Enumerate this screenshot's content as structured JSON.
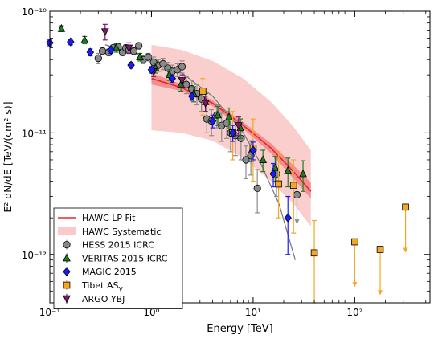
{
  "chart_data": {
    "type": "scatter",
    "xlabel": "Energy [TeV]",
    "ylabel": "E² dN/dE  [TeV/(cm² s)]",
    "x_scale": "log",
    "y_scale": "log",
    "xlim": [
      0.1,
      550
    ],
    "ylim": [
      4e-13,
      1e-10
    ],
    "x_ticks": [
      {
        "value": 0.1,
        "label": "10⁻¹"
      },
      {
        "value": 1,
        "label": "10⁰"
      },
      {
        "value": 10,
        "label": "10¹"
      },
      {
        "value": 100,
        "label": "10²"
      }
    ],
    "y_ticks": [
      {
        "value": 1e-12,
        "label": "10⁻¹²"
      },
      {
        "value": 1e-11,
        "label": "10⁻¹¹"
      },
      {
        "value": 1e-10,
        "label": "10⁻¹⁰"
      }
    ],
    "legend_position": "lower-left",
    "legend": [
      {
        "key": "hawc_fit",
        "label": "HAWC LP Fit",
        "kind": "line",
        "color": "#e8262b"
      },
      {
        "key": "hawc_sys",
        "label": "HAWC Systematic",
        "kind": "band",
        "color": "#fbc9c9"
      },
      {
        "key": "hess",
        "label": "HESS 2015 ICRC",
        "kind": "circle",
        "color": "#888888"
      },
      {
        "key": "veritas",
        "label": "VERITAS 2015 ICRC",
        "kind": "triangle",
        "color": "#1f7a1f"
      },
      {
        "key": "magic",
        "label": "MAGIC 2015",
        "kind": "diamond",
        "color": "#1a1aff"
      },
      {
        "key": "tibet",
        "label": "Tibet AS",
        "sub": "γ",
        "kind": "square",
        "color": "#f5a623"
      },
      {
        "key": "argo",
        "label": "ARGO YBJ",
        "kind": "down-triangle",
        "color": "#7b1a6b"
      }
    ],
    "hawc_fit": [
      [
        1.0,
        2.8e-11
      ],
      [
        2,
        2.35e-11
      ],
      [
        4,
        1.75e-11
      ],
      [
        8,
        1.15e-11
      ],
      [
        15,
        7.5e-12
      ],
      [
        25,
        4.8e-12
      ],
      [
        37,
        3.3e-12
      ]
    ],
    "hawc_fit_err_low": [
      [
        1.0,
        2.5e-11
      ],
      [
        2,
        2.2e-11
      ],
      [
        4,
        1.65e-11
      ],
      [
        8,
        1.08e-11
      ],
      [
        15,
        6.8e-12
      ],
      [
        25,
        4.2e-12
      ],
      [
        37,
        2.9e-12
      ]
    ],
    "hawc_fit_err_high": [
      [
        1.0,
        3.1e-11
      ],
      [
        2,
        2.5e-11
      ],
      [
        4,
        1.85e-11
      ],
      [
        8,
        1.22e-11
      ],
      [
        15,
        8.2e-12
      ],
      [
        25,
        5.4e-12
      ],
      [
        37,
        3.9e-12
      ]
    ],
    "hawc_sys_low": [
      [
        1.0,
        1.05e-11
      ],
      [
        2,
        1e-11
      ],
      [
        4,
        8.6e-12
      ],
      [
        8,
        6.2e-12
      ],
      [
        15,
        4e-12
      ],
      [
        25,
        2.6e-12
      ],
      [
        37,
        1.7e-12
      ]
    ],
    "hawc_sys_high": [
      [
        1.0,
        5.3e-11
      ],
      [
        2,
        4.8e-11
      ],
      [
        4,
        3.9e-11
      ],
      [
        8,
        2.8e-11
      ],
      [
        15,
        1.8e-11
      ],
      [
        25,
        1.12e-11
      ],
      [
        37,
        7.2e-12
      ]
    ],
    "hess_fit_curve": [
      [
        0.35,
        5.3e-11
      ],
      [
        1,
        4.1e-11
      ],
      [
        2,
        3.1e-11
      ],
      [
        4,
        2e-11
      ],
      [
        8,
        1e-11
      ],
      [
        12,
        5.5e-12
      ],
      [
        18,
        2.6e-12
      ],
      [
        26,
        9e-13
      ]
    ],
    "series": {
      "hess": [
        {
          "x": 0.3,
          "y": 4.1e-11,
          "lo": 3.7e-11,
          "hi": 4.5e-11
        },
        {
          "x": 0.33,
          "y": 4.7e-11,
          "lo": 4.4e-11,
          "hi": 5e-11
        },
        {
          "x": 0.38,
          "y": 4.6e-11,
          "lo": 4.3e-11,
          "hi": 4.9e-11
        },
        {
          "x": 0.42,
          "y": 5e-11,
          "lo": 4.7e-11,
          "hi": 5.3e-11
        },
        {
          "x": 0.47,
          "y": 5.1e-11,
          "lo": 4.8e-11,
          "hi": 5.4e-11
        },
        {
          "x": 0.52,
          "y": 4.6e-11,
          "lo": 4.3e-11,
          "hi": 4.9e-11
        },
        {
          "x": 0.56,
          "y": 5e-11,
          "lo": 4.7e-11,
          "hi": 5.3e-11
        },
        {
          "x": 0.6,
          "y": 4.8e-11,
          "lo": 4.5e-11,
          "hi": 5.1e-11
        },
        {
          "x": 0.67,
          "y": 4.7e-11,
          "lo": 4.4e-11,
          "hi": 5e-11
        },
        {
          "x": 0.75,
          "y": 5.2e-11,
          "lo": 4.9e-11,
          "hi": 5.5e-11
        },
        {
          "x": 0.83,
          "y": 4e-11,
          "lo": 3.7e-11,
          "hi": 4.3e-11
        },
        {
          "x": 0.93,
          "y": 4.2e-11,
          "lo": 3.9e-11,
          "hi": 4.5e-11
        },
        {
          "x": 1.05,
          "y": 3.8e-11,
          "lo": 3.4e-11,
          "hi": 4.2e-11
        },
        {
          "x": 1.17,
          "y": 3.6e-11,
          "lo": 3.2e-11,
          "hi": 4e-11
        },
        {
          "x": 1.3,
          "y": 3.7e-11,
          "lo": 3.3e-11,
          "hi": 4.1e-11
        },
        {
          "x": 1.45,
          "y": 3.4e-11,
          "lo": 3e-11,
          "hi": 3.8e-11
        },
        {
          "x": 1.6,
          "y": 3.2e-11,
          "lo": 2.8e-11,
          "hi": 3.6e-11
        },
        {
          "x": 1.8,
          "y": 3.3e-11,
          "lo": 2.9e-11,
          "hi": 3.7e-11
        },
        {
          "x": 2.0,
          "y": 3.5e-11,
          "lo": 3.1e-11,
          "hi": 3.9e-11
        },
        {
          "x": 2.2,
          "y": 2.5e-11,
          "lo": 2.1e-11,
          "hi": 2.9e-11
        },
        {
          "x": 2.5,
          "y": 2.3e-11,
          "lo": 1.9e-11,
          "hi": 2.7e-11
        },
        {
          "x": 2.8,
          "y": 2.1e-11,
          "lo": 1.7e-11,
          "hi": 2.5e-11
        },
        {
          "x": 3.1,
          "y": 1.9e-11,
          "lo": 1.5e-11,
          "hi": 2.3e-11
        },
        {
          "x": 3.5,
          "y": 1.3e-11,
          "lo": 1e-11,
          "hi": 1.6e-11
        },
        {
          "x": 3.9,
          "y": 1.25e-11,
          "lo": 9.5e-12,
          "hi": 1.55e-11
        },
        {
          "x": 4.4,
          "y": 1.4e-11,
          "lo": 1.1e-11,
          "hi": 1.7e-11
        },
        {
          "x": 4.9,
          "y": 1.15e-11,
          "lo": 8.5e-12,
          "hi": 1.45e-11
        },
        {
          "x": 5.5,
          "y": 1.2e-11,
          "lo": 9e-12,
          "hi": 1.5e-11
        },
        {
          "x": 6.0,
          "y": 1e-11,
          "lo": 7e-12,
          "hi": 1.3e-11
        },
        {
          "x": 6.7,
          "y": 9.5e-12,
          "lo": 6.5e-12,
          "hi": 1.25e-11
        },
        {
          "x": 7.6,
          "y": 9e-12,
          "lo": 6e-12,
          "hi": 1.2e-11
        },
        {
          "x": 8.5,
          "y": 6e-12,
          "lo": 4.2e-12,
          "hi": 7.8e-12
        },
        {
          "x": 9.5,
          "y": 6.5e-12,
          "lo": 4.5e-12,
          "hi": 8.5e-12
        },
        {
          "x": 11,
          "y": 3.5e-12,
          "lo": 2.2e-12,
          "hi": 5e-12
        },
        {
          "x": 17,
          "y": 4.6e-12,
          "lo": 3e-12,
          "hi": 6.2e-12
        },
        {
          "x": 27,
          "y": 3.1e-12,
          "ul": true,
          "arrow_to": 1.8e-12
        }
      ],
      "veritas": [
        {
          "x": 0.13,
          "y": 7.2e-11,
          "lo": 6.8e-11,
          "hi": 7.6e-11
        },
        {
          "x": 0.22,
          "y": 5.8e-11,
          "lo": 5.4e-11,
          "hi": 6.2e-11
        },
        {
          "x": 0.45,
          "y": 5e-11,
          "lo": 4.6e-11,
          "hi": 5.4e-11
        },
        {
          "x": 0.77,
          "y": 4.2e-11,
          "lo": 3.9e-11,
          "hi": 4.5e-11
        },
        {
          "x": 1.1,
          "y": 3.4e-11,
          "lo": 3.1e-11,
          "hi": 3.7e-11
        },
        {
          "x": 1.5,
          "y": 3e-11,
          "lo": 2.7e-11,
          "hi": 3.3e-11
        },
        {
          "x": 1.95,
          "y": 2.5e-11,
          "lo": 2.2e-11,
          "hi": 2.8e-11
        },
        {
          "x": 2.6,
          "y": 2.1e-11,
          "lo": 1.8e-11,
          "hi": 2.4e-11
        },
        {
          "x": 3.4,
          "y": 1.8e-11,
          "lo": 1.5e-11,
          "hi": 2.1e-11
        },
        {
          "x": 4.5,
          "y": 1.4e-11,
          "lo": 1.15e-11,
          "hi": 1.65e-11
        },
        {
          "x": 5.8,
          "y": 1.35e-11,
          "lo": 1.1e-11,
          "hi": 1.6e-11
        },
        {
          "x": 7.5,
          "y": 1.1e-11,
          "lo": 9e-12,
          "hi": 1.3e-11
        },
        {
          "x": 9.7,
          "y": 7.2e-12,
          "lo": 5.8e-12,
          "hi": 8.6e-12
        },
        {
          "x": 12.5,
          "y": 6e-12,
          "lo": 4.8e-12,
          "hi": 7.2e-12
        },
        {
          "x": 16.5,
          "y": 5.2e-12,
          "lo": 4e-12,
          "hi": 6.4e-12
        },
        {
          "x": 22,
          "y": 4.9e-12,
          "lo": 3.6e-12,
          "hi": 6.2e-12
        },
        {
          "x": 31,
          "y": 4.6e-12,
          "lo": 3.3e-12,
          "hi": 5.9e-12
        }
      ],
      "magic": [
        {
          "x": 0.1,
          "y": 5.5e-11,
          "lo": 5.2e-11,
          "hi": 5.8e-11
        },
        {
          "x": 0.16,
          "y": 5.6e-11,
          "lo": 5.3e-11,
          "hi": 5.9e-11
        },
        {
          "x": 0.25,
          "y": 4.6e-11,
          "lo": 4.3e-11,
          "hi": 4.9e-11
        },
        {
          "x": 0.4,
          "y": 4.8e-11,
          "lo": 4.5e-11,
          "hi": 5.1e-11
        },
        {
          "x": 0.63,
          "y": 3.6e-11,
          "lo": 3.4e-11,
          "hi": 3.8e-11
        },
        {
          "x": 1.0,
          "y": 3.3e-11,
          "lo": 3.1e-11,
          "hi": 3.5e-11
        },
        {
          "x": 1.6,
          "y": 2.8e-11,
          "lo": 2.6e-11,
          "hi": 3e-11
        },
        {
          "x": 2.5,
          "y": 2e-11,
          "lo": 1.85e-11,
          "hi": 2.15e-11
        },
        {
          "x": 4.0,
          "y": 1.25e-11,
          "lo": 1.1e-11,
          "hi": 1.4e-11
        },
        {
          "x": 6.3,
          "y": 1e-11,
          "lo": 8.5e-12,
          "hi": 1.15e-11
        },
        {
          "x": 10,
          "y": 7.2e-12,
          "lo": 6e-12,
          "hi": 8.4e-12
        },
        {
          "x": 15.8,
          "y": 4.6e-12,
          "lo": 3.6e-12,
          "hi": 5.6e-12
        },
        {
          "x": 22,
          "y": 2e-12,
          "lo": 1e-12,
          "hi": 3e-12
        }
      ],
      "tibet": [
        {
          "x": 3.2,
          "y": 2.2e-11,
          "lo": 1.4e-11,
          "hi": 2.8e-11
        },
        {
          "x": 6.3,
          "y": 1e-11,
          "lo": 6e-12,
          "hi": 1.5e-11
        },
        {
          "x": 10,
          "y": 7.5e-12,
          "lo": 4e-12,
          "hi": 1.3e-11
        },
        {
          "x": 17.8,
          "y": 3.8e-12,
          "lo": 2e-12,
          "hi": 7e-12
        },
        {
          "x": 25,
          "y": 3.7e-12,
          "lo": 1.5e-12,
          "hi": 6e-12
        },
        {
          "x": 40,
          "y": 1.03e-12,
          "lo": 4e-13,
          "hi": 1.9e-12
        },
        {
          "x": 100,
          "y": 1.27e-12,
          "ul": true,
          "arrow_to": 5.5e-13
        },
        {
          "x": 178,
          "y": 1.1e-12,
          "ul": true,
          "arrow_to": 4.7e-13
        },
        {
          "x": 316,
          "y": 2.45e-12,
          "ul": true,
          "arrow_to": 1.05e-12
        }
      ],
      "argo": [
        {
          "x": 0.35,
          "y": 6.8e-11,
          "lo": 5.8e-11,
          "hi": 7.8e-11
        },
        {
          "x": 0.6,
          "y": 5e-11,
          "lo": 4.5e-11,
          "hi": 5.5e-11
        },
        {
          "x": 1.05,
          "y": 3.2e-11,
          "lo": 2.9e-11,
          "hi": 3.5e-11
        },
        {
          "x": 2.0,
          "y": 2.7e-11,
          "lo": 2.4e-11,
          "hi": 3e-11
        },
        {
          "x": 3.4,
          "y": 1.75e-11,
          "lo": 1.5e-11,
          "hi": 2e-11
        },
        {
          "x": 7.2,
          "y": 1.15e-11,
          "lo": 9.5e-12,
          "hi": 1.35e-11
        }
      ]
    }
  }
}
